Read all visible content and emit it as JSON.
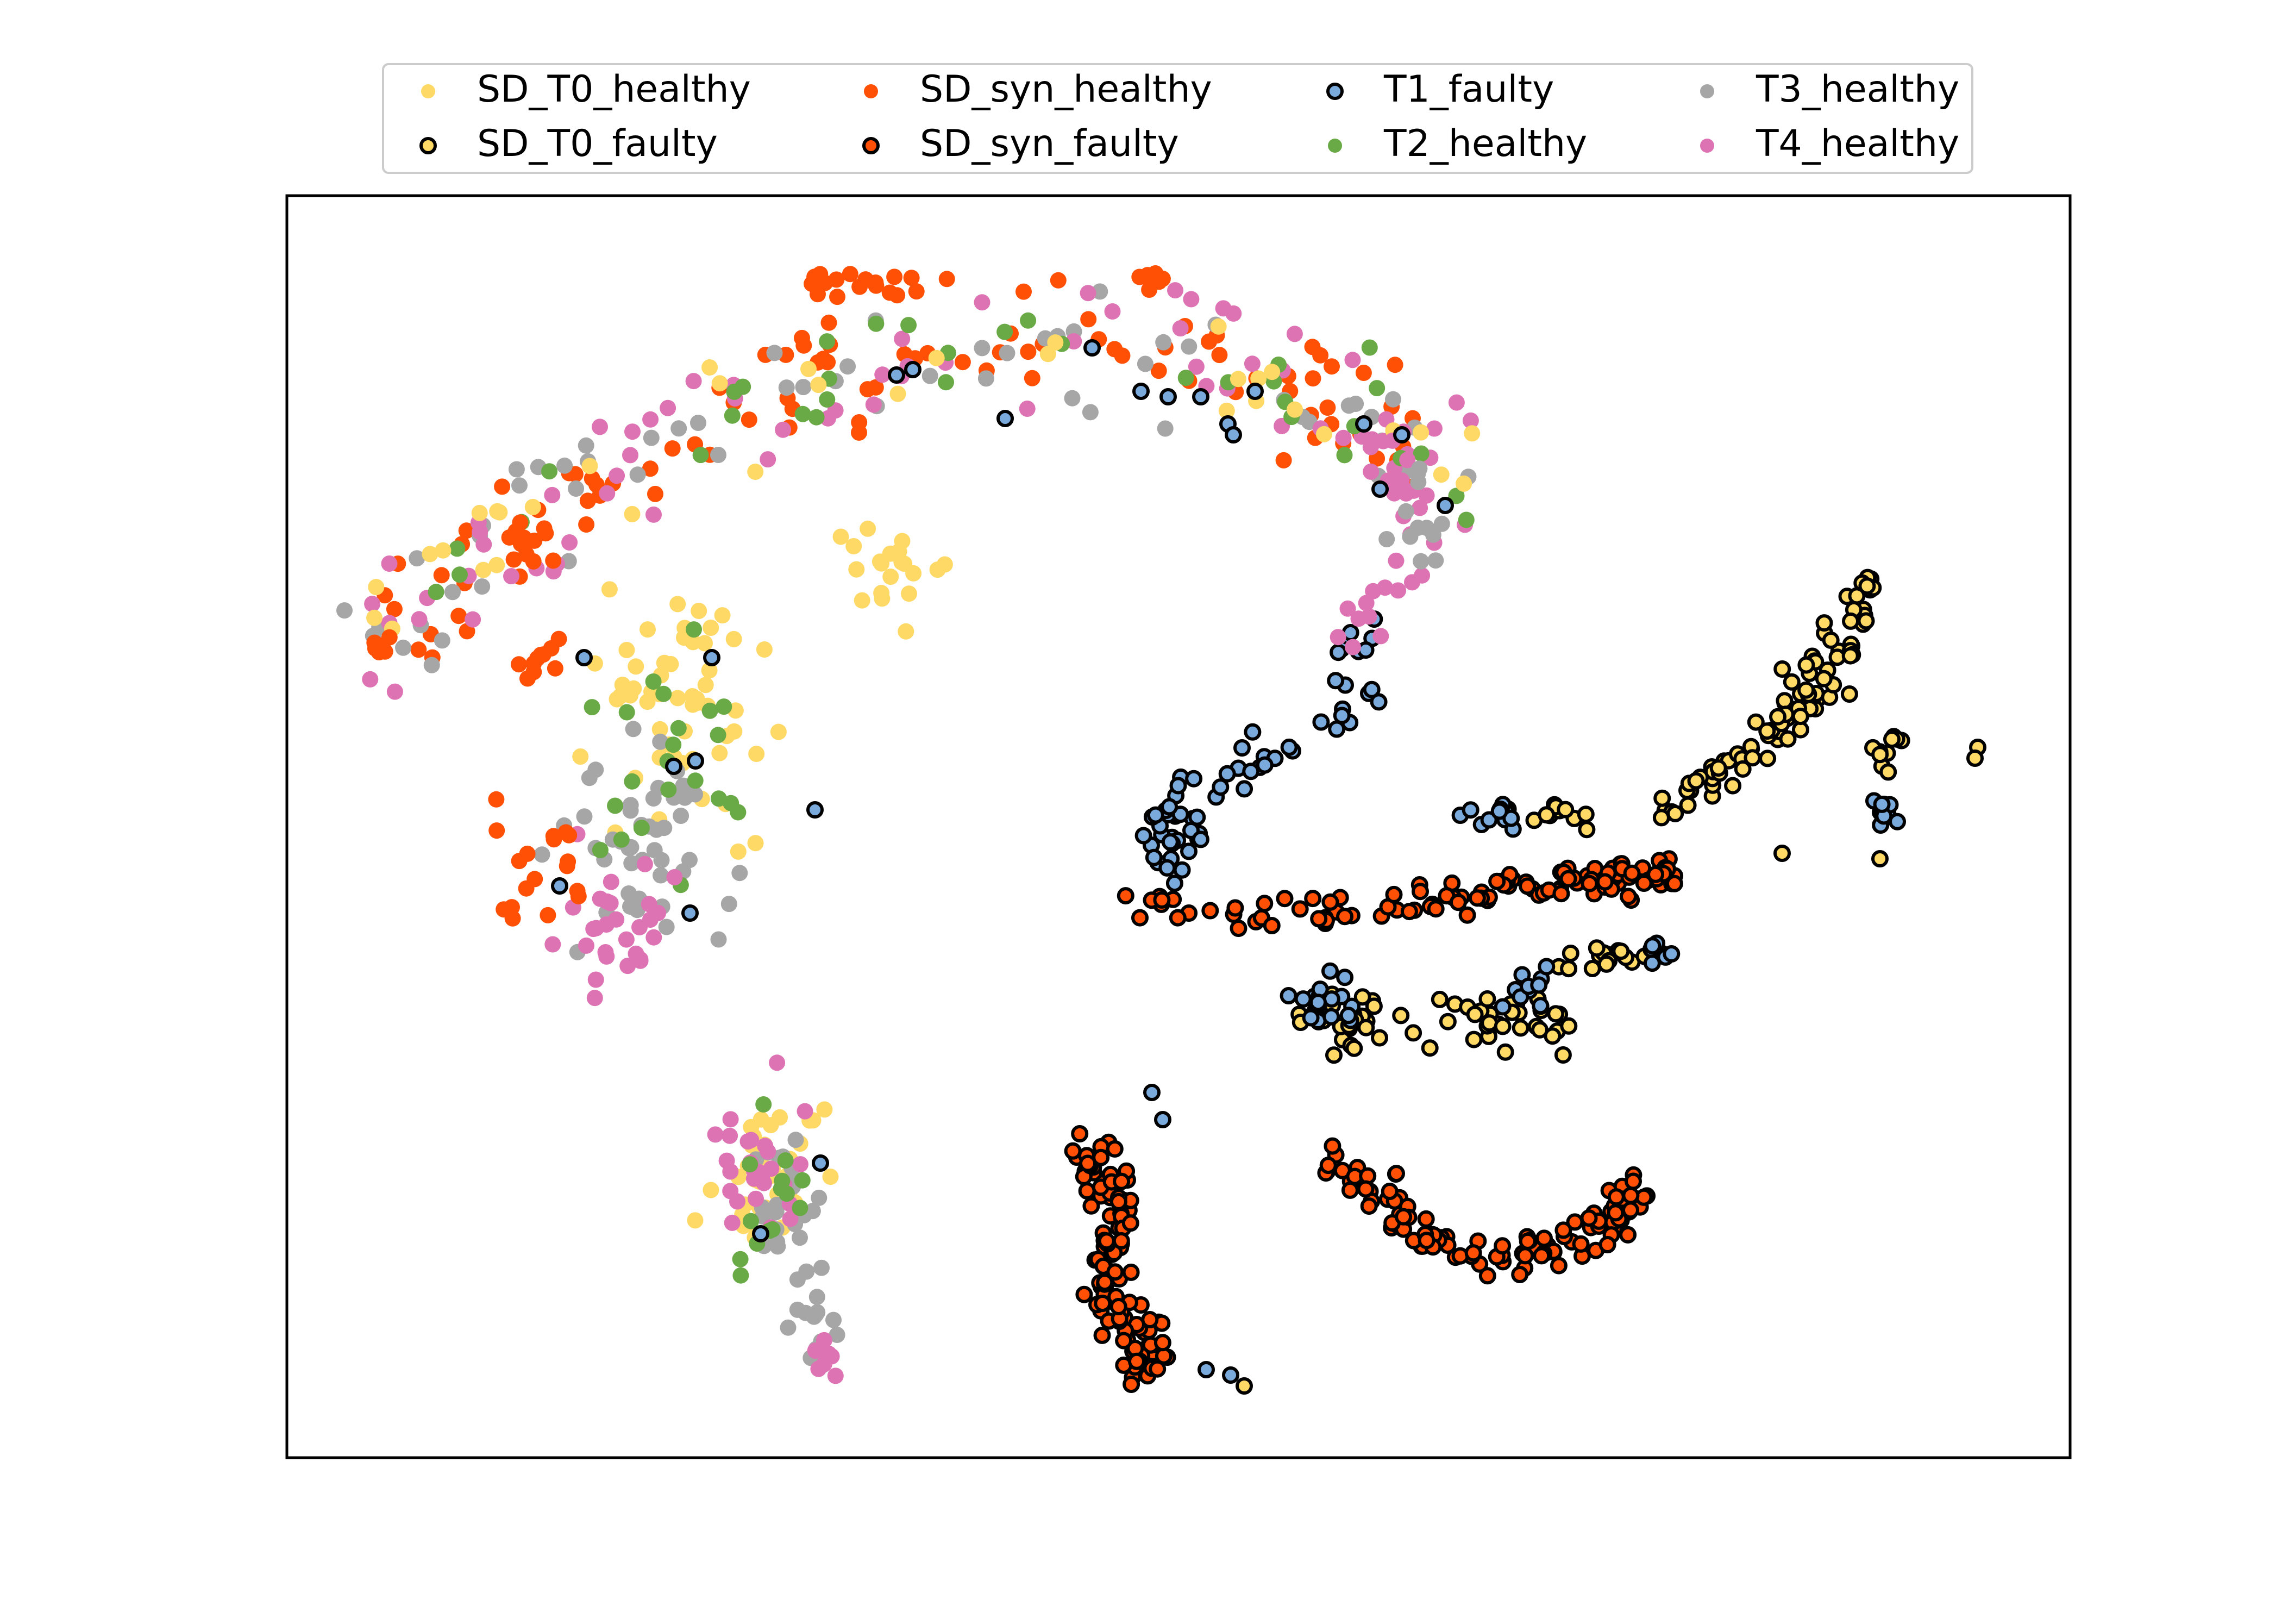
{
  "chart_data": {
    "type": "scatter",
    "title": "",
    "xlabel": "",
    "ylabel": "",
    "xticks": "none",
    "yticks": "none",
    "grid": false,
    "legend_placement": "top-center, above plot",
    "legend_columns": 4,
    "series": [
      {
        "name": "SD_T0_healthy",
        "color": "#ffd966",
        "edge": "none"
      },
      {
        "name": "SD_T0_faulty",
        "color": "#ffd966",
        "edge": "#000000"
      },
      {
        "name": "SD_syn_healthy",
        "color": "#ff5005",
        "edge": "none"
      },
      {
        "name": "SD_syn_faulty",
        "color": "#ff5005",
        "edge": "#000000"
      },
      {
        "name": "T1_faulty",
        "color": "#7aaadb",
        "edge": "#000000"
      },
      {
        "name": "T2_healthy",
        "color": "#6aaa46",
        "edge": "none"
      },
      {
        "name": "T3_healthy",
        "color": "#a6a6a6",
        "edge": "none"
      },
      {
        "name": "T4_healthy",
        "color": "#de73b4",
        "edge": "none"
      }
    ]
  }
}
